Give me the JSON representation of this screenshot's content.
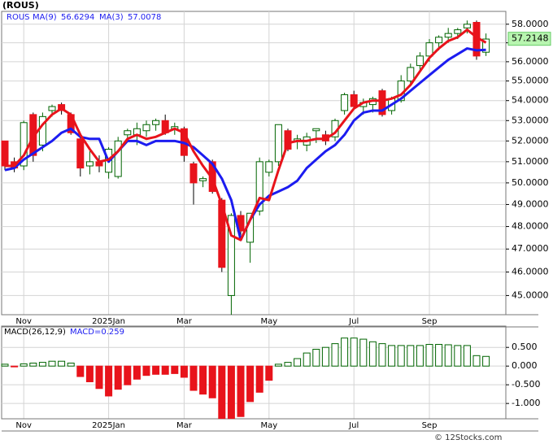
{
  "chart_data": [
    {
      "type": "candlestick",
      "title": "(ROUS)",
      "symbol": "ROUS",
      "categories": [
        null,
        null,
        "Nov",
        null,
        null,
        null,
        null,
        null,
        null,
        null,
        null,
        "2025Jan",
        null,
        null,
        null,
        null,
        null,
        null,
        null,
        "Mar",
        null,
        null,
        null,
        null,
        null,
        null,
        null,
        null,
        "May",
        null,
        null,
        null,
        null,
        null,
        null,
        null,
        null,
        "Jul",
        null,
        null,
        null,
        null,
        null,
        null,
        null,
        "Sep",
        null,
        null,
        null,
        null,
        null,
        null
      ],
      "open": [
        52,
        51,
        50.8,
        53.3,
        51.8,
        53.5,
        53.8,
        53.3,
        52.1,
        50.8,
        51,
        50.5,
        50.3,
        52.3,
        52.3,
        52.5,
        52.8,
        53,
        52.6,
        52.6,
        50.9,
        50.1,
        51,
        49.2,
        45,
        48.5,
        47.3,
        48.7,
        50.5,
        51,
        52.5,
        52,
        51.8,
        52.5,
        52.3,
        52.2,
        53.5,
        54.3,
        53.7,
        53.8,
        54.5,
        53.5,
        54,
        55,
        55.8,
        56.3,
        57,
        57.3,
        57.5,
        57.8,
        58.1,
        56.5
      ],
      "high": [
        52,
        51.2,
        53,
        53.4,
        53.4,
        53.8,
        53.9,
        53.4,
        52.3,
        51.5,
        51.3,
        51.7,
        52.2,
        52.6,
        52.9,
        53,
        53.1,
        53.3,
        52.9,
        52.7,
        51,
        50.3,
        51.1,
        49.3,
        48.6,
        48.7,
        48.6,
        51.2,
        51.1,
        52.8,
        52.6,
        52.3,
        52.4,
        52.6,
        52.5,
        53.1,
        54.4,
        54.5,
        54.1,
        54.2,
        54.6,
        54.2,
        55.3,
        55.9,
        56.5,
        57.2,
        57.4,
        57.8,
        57.8,
        58.2,
        58.2,
        57.5
      ],
      "low": [
        50.6,
        50.5,
        50.6,
        51,
        51.5,
        53.2,
        53.3,
        52.3,
        50.3,
        50.4,
        50.5,
        50.2,
        50.2,
        52,
        51.8,
        52.2,
        52.5,
        52.3,
        52.3,
        51,
        49,
        49.8,
        49.5,
        46,
        44.2,
        47.6,
        46.4,
        48.5,
        50.3,
        50.8,
        51.5,
        51.6,
        51.5,
        51.9,
        51.8,
        52,
        53.3,
        53.6,
        53.3,
        53.4,
        53.2,
        53.3,
        53.9,
        54.8,
        55.5,
        56,
        56.6,
        57,
        57.2,
        57.5,
        56.1,
        56.3
      ],
      "close": [
        50.8,
        50.7,
        52.9,
        51.3,
        53.2,
        53.7,
        53.5,
        52.4,
        50.7,
        51,
        50.8,
        51.6,
        52,
        52.5,
        52.6,
        52.8,
        53,
        52.4,
        52.7,
        51.3,
        50,
        50.2,
        49.6,
        46.2,
        48.5,
        47.8,
        48.6,
        51,
        51,
        52.8,
        51.6,
        52.1,
        52.2,
        52.6,
        52,
        53,
        54.3,
        53.7,
        53.9,
        54.1,
        53.3,
        54.1,
        55,
        55.7,
        56.3,
        57,
        57.3,
        57.5,
        57.7,
        58,
        56.3,
        57.2
      ],
      "up_color": "#006400",
      "down_color": "#e8131b",
      "series": [
        {
          "name": "MA(9)",
          "color": "#1c1cf0",
          "values": [
            50.6,
            50.7,
            51.1,
            51.4,
            51.7,
            52.0,
            52.4,
            52.6,
            52.2,
            52.1,
            52.1,
            51.0,
            51.5,
            52.0,
            52.0,
            51.8,
            52.0,
            52.0,
            52.0,
            51.9,
            51.7,
            51.3,
            50.9,
            50.2,
            49.2,
            47.4,
            48.3,
            49.0,
            49.4,
            49.6,
            49.8,
            50.1,
            50.7,
            51.1,
            51.5,
            51.8,
            52.3,
            53.0,
            53.4,
            53.5,
            53.5,
            53.8,
            54.1,
            54.5,
            54.9,
            55.3,
            55.7,
            56.1,
            56.4,
            56.7,
            56.6,
            56.6294
          ]
        },
        {
          "name": "MA(3)",
          "color": "#e8131b",
          "values": [
            50.8,
            50.8,
            51.3,
            52.2,
            52.8,
            53.3,
            53.6,
            53.3,
            52.3,
            51.6,
            51.0,
            51.1,
            51.5,
            52.1,
            52.3,
            52.1,
            52.2,
            52.4,
            52.6,
            52.4,
            51.5,
            50.8,
            50.2,
            49.0,
            47.6,
            47.4,
            48.3,
            49.3,
            49.2,
            50.6,
            51.9,
            52.0,
            52.0,
            52.1,
            52.1,
            52.4,
            53.0,
            53.6,
            53.9,
            54.0,
            54.0,
            54.1,
            54.3,
            54.8,
            55.5,
            56.2,
            56.7,
            57.1,
            57.3,
            57.7,
            57.3,
            57.0078
          ]
        }
      ],
      "last_price": 57.2148,
      "log_scale": true,
      "grid": true,
      "ylim": [
        44.2,
        58.7
      ],
      "yticks": [
        {
          "value": 45,
          "label": "45.0000"
        },
        {
          "value": 46,
          "label": "46.0000"
        },
        {
          "value": 47,
          "label": "47.0000"
        },
        {
          "value": 48,
          "label": "48.0000"
        },
        {
          "value": 49,
          "label": "49.0000"
        },
        {
          "value": 50,
          "label": "50.0000"
        },
        {
          "value": 51,
          "label": "51.0000"
        },
        {
          "value": 52,
          "label": "52.0000"
        },
        {
          "value": 53,
          "label": "53.0000"
        },
        {
          "value": 54,
          "label": "54.0000"
        },
        {
          "value": 55,
          "label": "55.0000"
        },
        {
          "value": 56,
          "label": "56.0000"
        },
        {
          "value": 57,
          "label": "57.0000"
        },
        {
          "value": 58,
          "label": "58.0000"
        }
      ]
    },
    {
      "type": "bar",
      "title": "MACD(26,12,9)",
      "series_label": "MACD=0.259",
      "categories": [
        null,
        null,
        "Nov",
        null,
        null,
        null,
        null,
        null,
        null,
        null,
        null,
        "2025Jan",
        null,
        null,
        null,
        null,
        null,
        null,
        null,
        "Mar",
        null,
        null,
        null,
        null,
        null,
        null,
        null,
        null,
        "May",
        null,
        null,
        null,
        null,
        null,
        null,
        null,
        null,
        "Jul",
        null,
        null,
        null,
        null,
        null,
        null,
        null,
        "Sep",
        null,
        null,
        null,
        null,
        null,
        null
      ],
      "values": [
        0.05,
        -0.02,
        0.06,
        0.08,
        0.1,
        0.13,
        0.13,
        0.08,
        -0.28,
        -0.42,
        -0.6,
        -0.8,
        -0.62,
        -0.5,
        -0.35,
        -0.25,
        -0.22,
        -0.22,
        -0.2,
        -0.3,
        -0.65,
        -0.75,
        -0.85,
        -1.4,
        -1.4,
        -1.35,
        -0.95,
        -0.7,
        -0.38,
        0.05,
        0.1,
        0.2,
        0.35,
        0.45,
        0.5,
        0.6,
        0.75,
        0.75,
        0.72,
        0.65,
        0.6,
        0.55,
        0.55,
        0.55,
        0.55,
        0.58,
        0.58,
        0.57,
        0.55,
        0.55,
        0.28,
        0.259
      ],
      "positive_color": "#006400",
      "negative_color": "#e8131b",
      "grid": true,
      "ylim": [
        -1.41,
        1.07
      ],
      "yticks": [
        {
          "value": 0.5,
          "label": "0.500"
        },
        {
          "value": 0,
          "label": "0.000"
        },
        {
          "value": -0.5,
          "label": "-0.500"
        },
        {
          "value": -1,
          "label": "-1.000"
        }
      ]
    }
  ]
}
